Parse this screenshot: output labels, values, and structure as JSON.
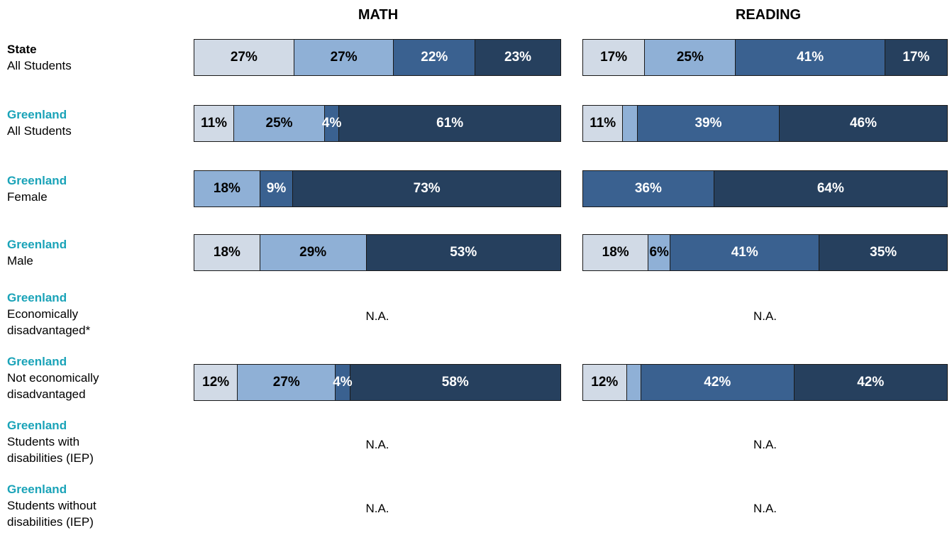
{
  "chart_data": {
    "type": "bar",
    "stacked": true,
    "orientation": "horizontal",
    "panels": [
      "MATH",
      "READING"
    ],
    "colors": [
      "#d1dae6",
      "#8fb0d6",
      "#3a6190",
      "#26405e"
    ],
    "groups": [
      {
        "name": "State",
        "subgroup": "All Students",
        "name_color": "#000000",
        "math": [
          27,
          27,
          22,
          23
        ],
        "math_labels": [
          "27%",
          "27%",
          "22%",
          "23%"
        ],
        "reading": [
          17,
          25,
          41,
          17
        ],
        "reading_labels": [
          "17%",
          "25%",
          "41%",
          "17%"
        ]
      },
      {
        "name": "Greenland",
        "subgroup": "All Students",
        "name_color": "#1aa3b8",
        "math": [
          11,
          25,
          4,
          61
        ],
        "math_labels": [
          "11%",
          "25%",
          "4%",
          "61%"
        ],
        "reading": [
          11,
          4,
          39,
          46
        ],
        "reading_labels": [
          "11%",
          "",
          "39%",
          "46%"
        ]
      },
      {
        "name": "Greenland",
        "subgroup": "Female",
        "name_color": "#1aa3b8",
        "math": [
          0,
          18,
          9,
          73
        ],
        "math_labels": [
          "",
          "18%",
          "9%",
          "73%"
        ],
        "reading": [
          0,
          0,
          36,
          64
        ],
        "reading_labels": [
          "",
          "",
          "36%",
          "64%"
        ]
      },
      {
        "name": "Greenland",
        "subgroup": "Male",
        "name_color": "#1aa3b8",
        "math": [
          18,
          29,
          0,
          53
        ],
        "math_labels": [
          "18%",
          "29%",
          "",
          "53%"
        ],
        "reading": [
          18,
          6,
          41,
          35
        ],
        "reading_labels": [
          "18%",
          "6%",
          "41%",
          "35%"
        ]
      },
      {
        "name": "Greenland",
        "subgroup": "Economically disadvantaged*",
        "name_color": "#1aa3b8",
        "math": null,
        "reading": null,
        "na_text": "N.A."
      },
      {
        "name": "Greenland",
        "subgroup": "Not economically disadvantaged",
        "name_color": "#1aa3b8",
        "math": [
          12,
          27,
          4,
          58
        ],
        "math_labels": [
          "12%",
          "27%",
          "4%",
          "58%"
        ],
        "reading": [
          12,
          4,
          42,
          42
        ],
        "reading_labels": [
          "12%",
          "",
          "42%",
          "42%"
        ]
      },
      {
        "name": "Greenland",
        "subgroup": "Students with disabilities (IEP)",
        "name_color": "#1aa3b8",
        "math": null,
        "reading": null,
        "na_text": "N.A."
      },
      {
        "name": "Greenland",
        "subgroup": "Students without disabilities (IEP)",
        "name_color": "#1aa3b8",
        "math": null,
        "reading": null,
        "na_text": "N.A."
      }
    ]
  }
}
